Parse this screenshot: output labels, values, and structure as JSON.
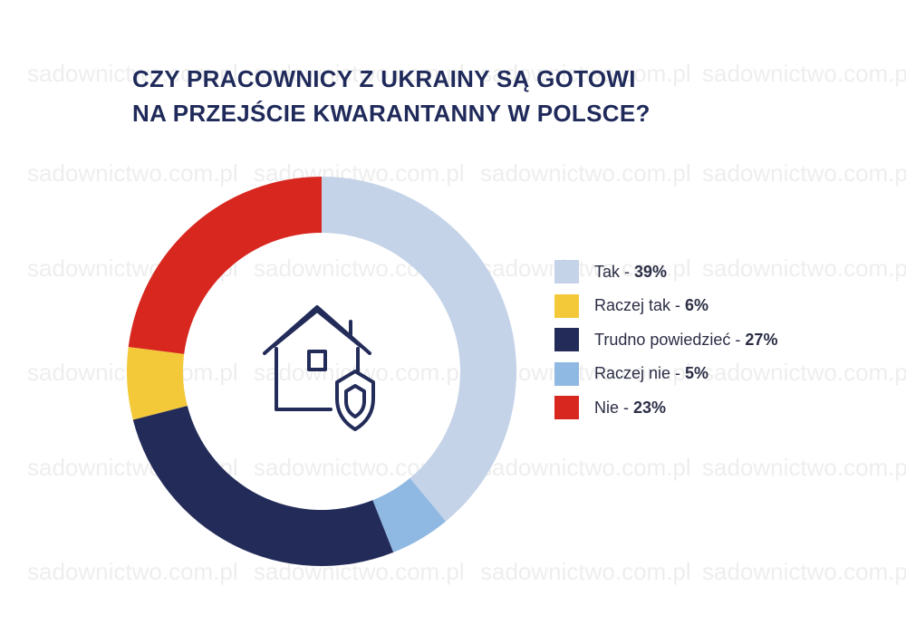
{
  "watermark": {
    "text": "sadownictwo.com.pl"
  },
  "chart_data": {
    "type": "pie",
    "title_lines": [
      "CZY PRACOWNICY Z UKRAINY SĄ GOTOWI",
      "NA PRZEJŚCIE KWARANTANNY W POLSCE?"
    ],
    "series": [
      {
        "name": "Tak",
        "value": 39,
        "label": "39%",
        "color": "#c4d3e8"
      },
      {
        "name": "Raczej tak",
        "value": 6,
        "label": "6%",
        "color": "#f3c93a"
      },
      {
        "name": "Trudno powiedzieć",
        "value": 27,
        "label": "27%",
        "color": "#232c59"
      },
      {
        "name": "Raczej nie",
        "value": 5,
        "label": "5%",
        "color": "#8fb8e2"
      },
      {
        "name": "Nie",
        "value": 23,
        "label": "23%",
        "color": "#d8271f"
      }
    ],
    "chart_order_clockwise_from_top": [
      "Tak",
      "Raczej nie",
      "Trudno powiedzieć",
      "Raczej tak",
      "Nie"
    ],
    "donut": true,
    "center_icon": "house-shield-icon",
    "legend_position": "right"
  }
}
